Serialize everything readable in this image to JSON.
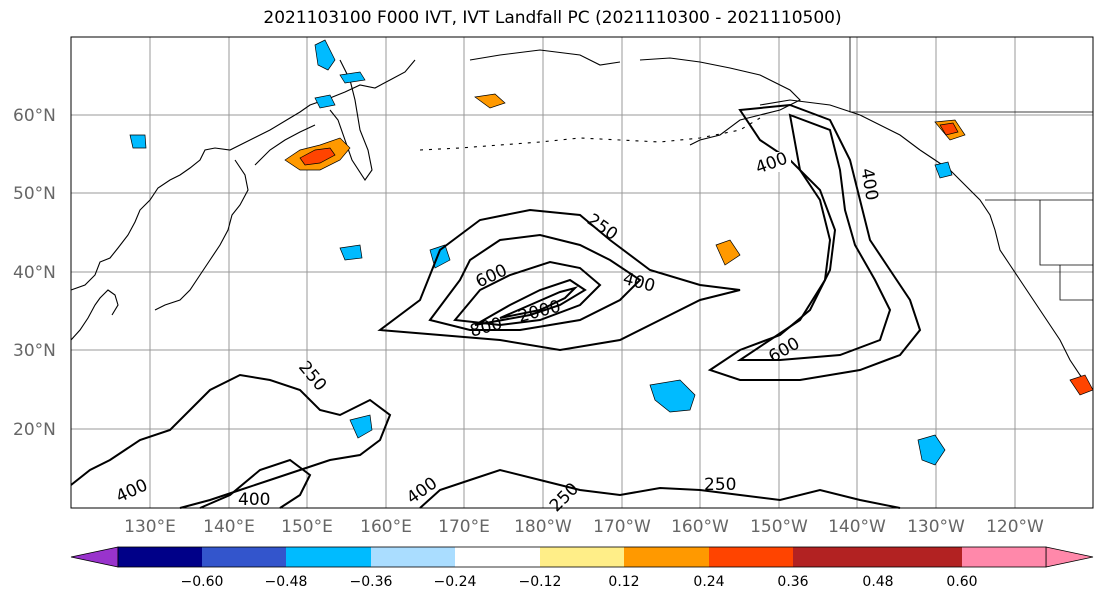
{
  "title": "2021103100 F000 IVT, IVT Landfall PC (2021110300 - 2021110500)",
  "map": {
    "lat_labels": [
      "60°N",
      "50°N",
      "40°N",
      "30°N",
      "20°N"
    ],
    "lon_labels": [
      "130°E",
      "140°E",
      "150°E",
      "160°E",
      "170°E",
      "180°W",
      "170°W",
      "160°W",
      "150°W",
      "140°W",
      "130°W",
      "120°W"
    ],
    "contour_labels": [
      "400",
      "400",
      "250",
      "600",
      "400",
      "800",
      "2000",
      "600",
      "250",
      "400",
      "400",
      "400",
      "250",
      "250"
    ]
  },
  "colorbar": {
    "colors": [
      "#9933cc",
      "#000088",
      "#3355cc",
      "#00bbff",
      "#aaddff",
      "#ffffff",
      "#ffee88",
      "#ff9900",
      "#ff4400",
      "#b22222",
      "#ff88aa"
    ],
    "ticks": [
      "−0.60",
      "−0.48",
      "−0.36",
      "−0.24",
      "−0.12",
      "0.12",
      "0.24",
      "0.36",
      "0.48",
      "0.60"
    ]
  }
}
